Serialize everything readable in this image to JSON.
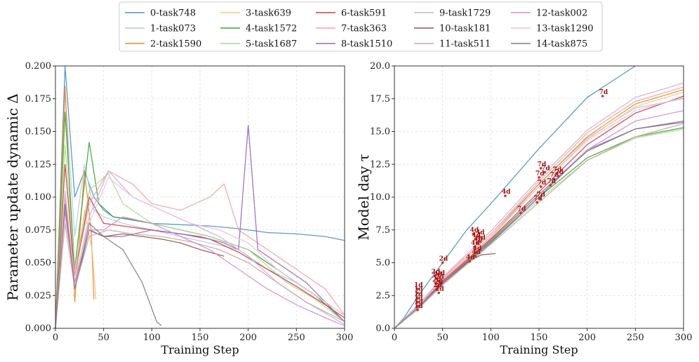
{
  "legend": {
    "entries": [
      {
        "label": "0-task748",
        "color": "#4a90c4"
      },
      {
        "label": "1-task073",
        "color": "#aecde8"
      },
      {
        "label": "2-task1590",
        "color": "#f08a2b"
      },
      {
        "label": "3-task639",
        "color": "#f7c58b"
      },
      {
        "label": "4-task1572",
        "color": "#3fa33a"
      },
      {
        "label": "5-task1687",
        "color": "#a9dd93"
      },
      {
        "label": "6-task591",
        "color": "#d43a3a"
      },
      {
        "label": "7-task363",
        "color": "#f5a3a3"
      },
      {
        "label": "8-task1510",
        "color": "#9467bd"
      },
      {
        "label": "9-task1729",
        "color": "#c8b3dc"
      },
      {
        "label": "10-task181",
        "color": "#8c564b"
      },
      {
        "label": "11-task511",
        "color": "#c9a99f"
      },
      {
        "label": "12-task002",
        "color": "#d98ad4"
      },
      {
        "label": "13-task1290",
        "color": "#f2bfdc"
      },
      {
        "label": "14-task875",
        "color": "#7f7f7f"
      }
    ]
  },
  "chart_data": [
    {
      "type": "line",
      "title": "",
      "xlabel": "Training Step",
      "ylabel": "Parameter update dynamic Δ",
      "xlim": [
        0,
        300
      ],
      "ylim": [
        0,
        0.2
      ],
      "xticks": [
        "0",
        "50",
        "100",
        "150",
        "200",
        "250",
        "300"
      ],
      "yticks": [
        "0.000",
        "0.025",
        "0.050",
        "0.075",
        "0.100",
        "0.125",
        "0.150",
        "0.175",
        "0.200"
      ],
      "grid": true,
      "series": [
        {
          "name": "0-task748",
          "x": [
            0,
            10,
            20,
            30,
            40,
            50,
            60,
            80,
            100,
            130,
            160,
            190,
            220,
            250,
            280,
            300
          ],
          "y": [
            0,
            0.2,
            0.1,
            0.12,
            0.1,
            0.09,
            0.085,
            0.083,
            0.08,
            0.079,
            0.078,
            0.076,
            0.073,
            0.072,
            0.07,
            0.067
          ]
        },
        {
          "name": "1-task073",
          "x": [
            0,
            10,
            20,
            30,
            40,
            50,
            70,
            100,
            130,
            160,
            190,
            220,
            250,
            280,
            300
          ],
          "y": [
            0,
            0.18,
            0.07,
            0.125,
            0.09,
            0.085,
            0.08,
            0.075,
            0.07,
            0.065,
            0.06,
            0.045,
            0.035,
            0.02,
            0.01
          ]
        },
        {
          "name": "2-task1590",
          "x": [
            0,
            10,
            20,
            30,
            37,
            40
          ],
          "y": [
            0,
            0.185,
            0.02,
            0.12,
            0.075,
            0.022
          ]
        },
        {
          "name": "3-task639",
          "x": [
            0,
            10,
            20,
            30,
            38,
            42
          ],
          "y": [
            0,
            0.1,
            0.03,
            0.09,
            0.06,
            0.022
          ]
        },
        {
          "name": "4-task1572",
          "x": [
            0,
            10,
            20,
            35,
            45,
            60,
            100,
            130,
            160,
            200,
            240,
            270,
            300
          ],
          "y": [
            0,
            0.165,
            0.045,
            0.142,
            0.095,
            0.085,
            0.08,
            0.075,
            0.07,
            0.06,
            0.04,
            0.025,
            0.005
          ]
        },
        {
          "name": "5-task1687",
          "x": [
            0,
            10,
            20,
            35,
            55,
            70,
            100,
            130,
            160,
            200,
            240,
            270,
            300
          ],
          "y": [
            0,
            0.14,
            0.045,
            0.105,
            0.118,
            0.095,
            0.08,
            0.075,
            0.07,
            0.06,
            0.035,
            0.022,
            0.005
          ]
        },
        {
          "name": "6-task591",
          "x": [
            0,
            10,
            20,
            35,
            50,
            70,
            100,
            130,
            160,
            190,
            220,
            250,
            280,
            300
          ],
          "y": [
            0,
            0.125,
            0.04,
            0.1,
            0.08,
            0.078,
            0.075,
            0.072,
            0.068,
            0.058,
            0.045,
            0.032,
            0.018,
            0.008
          ]
        },
        {
          "name": "7-task363",
          "x": [
            0,
            10,
            20,
            35,
            55,
            80,
            100,
            130,
            160,
            175,
            190,
            220,
            250,
            280,
            300
          ],
          "y": [
            0,
            0.1,
            0.04,
            0.095,
            0.12,
            0.11,
            0.095,
            0.09,
            0.1,
            0.11,
            0.075,
            0.06,
            0.045,
            0.03,
            0.01
          ]
        },
        {
          "name": "8-task1510",
          "x": [
            0,
            10,
            20,
            35,
            50,
            70,
            100,
            130,
            150,
            175,
            190,
            200,
            210,
            230,
            260,
            300
          ],
          "y": [
            0,
            0.095,
            0.03,
            0.075,
            0.07,
            0.07,
            0.075,
            0.072,
            0.07,
            0.065,
            0.06,
            0.155,
            0.06,
            0.05,
            0.035,
            0.005
          ]
        },
        {
          "name": "9-task1729",
          "x": [
            0,
            10,
            20,
            35,
            55,
            80,
            110,
            140,
            170,
            200,
            230,
            260,
            300
          ],
          "y": [
            0,
            0.105,
            0.035,
            0.085,
            0.12,
            0.1,
            0.09,
            0.08,
            0.07,
            0.055,
            0.035,
            0.02,
            0.003
          ]
        },
        {
          "name": "10-task181",
          "x": [
            0,
            10,
            20,
            35,
            50,
            70,
            90,
            110,
            130,
            150,
            175
          ],
          "y": [
            0,
            0.09,
            0.03,
            0.075,
            0.07,
            0.072,
            0.07,
            0.068,
            0.065,
            0.06,
            0.055
          ]
        },
        {
          "name": "11-task511",
          "x": [
            0,
            10,
            20,
            35,
            55,
            80,
            110,
            140,
            170,
            200,
            230,
            260,
            300
          ],
          "y": [
            0,
            0.08,
            0.03,
            0.07,
            0.075,
            0.072,
            0.07,
            0.066,
            0.06,
            0.05,
            0.035,
            0.02,
            0.005
          ]
        },
        {
          "name": "12-task002",
          "x": [
            0,
            10,
            20,
            35,
            50,
            70,
            100,
            130,
            160,
            190,
            220,
            250,
            280,
            300
          ],
          "y": [
            0,
            0.09,
            0.035,
            0.075,
            0.075,
            0.085,
            0.08,
            0.07,
            0.06,
            0.045,
            0.03,
            0.018,
            0.008,
            0.002
          ]
        },
        {
          "name": "13-task1290",
          "x": [
            0,
            10,
            20,
            35,
            55,
            80,
            110,
            140,
            170,
            200,
            230,
            260,
            300
          ],
          "y": [
            0,
            0.085,
            0.03,
            0.08,
            0.115,
            0.1,
            0.09,
            0.08,
            0.075,
            0.065,
            0.045,
            0.03,
            0.01
          ]
        },
        {
          "name": "14-task875",
          "x": [
            0,
            10,
            20,
            35,
            50,
            70,
            90,
            105,
            110
          ],
          "y": [
            0,
            0.095,
            0.03,
            0.08,
            0.07,
            0.06,
            0.035,
            0.005,
            0.002
          ]
        }
      ]
    },
    {
      "type": "line",
      "title": "",
      "xlabel": "Training Step",
      "ylabel": "Model day τ",
      "xlim": [
        0,
        300
      ],
      "ylim": [
        0,
        20
      ],
      "xticks": [
        "0",
        "50",
        "100",
        "150",
        "200",
        "250",
        "300"
      ],
      "yticks": [
        "0.0",
        "2.5",
        "5.0",
        "7.5",
        "10.0",
        "12.5",
        "15.0",
        "17.5",
        "20.0"
      ],
      "grid": true,
      "series": [
        {
          "name": "0-task748",
          "x": [
            0,
            10,
            25,
            50,
            75,
            100,
            150,
            200,
            250
          ],
          "y": [
            0,
            0.8,
            2.5,
            5.0,
            7.5,
            9.5,
            13.7,
            17.6,
            20.0
          ]
        },
        {
          "name": "1-task073",
          "x": [
            0,
            25,
            50,
            100,
            150,
            200,
            250,
            300
          ],
          "y": [
            0,
            1.8,
            3.8,
            7.2,
            11.0,
            14.5,
            16.8,
            17.5
          ]
        },
        {
          "name": "2-task1590",
          "x": [
            0,
            25,
            50,
            100,
            150,
            200,
            250,
            300
          ],
          "y": [
            0,
            1.7,
            3.7,
            7.0,
            11.0,
            14.6,
            17.1,
            18.2
          ]
        },
        {
          "name": "3-task639",
          "x": [
            0,
            25,
            50,
            100,
            150,
            200,
            250,
            300
          ],
          "y": [
            0,
            1.7,
            3.6,
            6.9,
            10.8,
            14.4,
            16.9,
            18.0
          ]
        },
        {
          "name": "4-task1572",
          "x": [
            0,
            25,
            50,
            100,
            150,
            200,
            250,
            300
          ],
          "y": [
            0,
            1.6,
            3.5,
            6.6,
            10.0,
            13.0,
            14.6,
            15.3
          ]
        },
        {
          "name": "5-task1687",
          "x": [
            0,
            25,
            50,
            100,
            150,
            200,
            250,
            300
          ],
          "y": [
            0,
            1.6,
            3.4,
            6.5,
            9.8,
            12.8,
            14.5,
            15.2
          ]
        },
        {
          "name": "6-task591",
          "x": [
            0,
            25,
            50,
            100,
            150,
            200,
            250,
            300
          ],
          "y": [
            0,
            1.7,
            3.6,
            6.8,
            10.4,
            14.0,
            16.4,
            17.7
          ]
        },
        {
          "name": "7-task363",
          "x": [
            0,
            25,
            50,
            100,
            150,
            200,
            250,
            300
          ],
          "y": [
            0,
            1.8,
            3.8,
            7.2,
            11.2,
            14.9,
            17.3,
            18.4
          ]
        },
        {
          "name": "8-task1510",
          "x": [
            0,
            25,
            50,
            100,
            150,
            200,
            250,
            300
          ],
          "y": [
            0,
            1.6,
            3.4,
            6.5,
            10.0,
            13.6,
            15.2,
            15.7
          ]
        },
        {
          "name": "9-task1729",
          "x": [
            0,
            25,
            50,
            100,
            150,
            200,
            250,
            300
          ],
          "y": [
            0,
            1.8,
            3.9,
            7.4,
            11.4,
            15.1,
            17.6,
            18.7
          ]
        },
        {
          "name": "10-task181",
          "x": [
            0,
            25,
            50,
            75,
            90,
            105
          ],
          "y": [
            0,
            1.7,
            3.5,
            5.0,
            5.6,
            5.7
          ]
        },
        {
          "name": "11-task511",
          "x": [
            0,
            25,
            50,
            100,
            150,
            200,
            250,
            300
          ],
          "y": [
            0,
            1.5,
            3.3,
            6.4,
            9.6,
            12.8,
            14.6,
            15.6
          ]
        },
        {
          "name": "12-task002",
          "x": [
            0,
            25,
            50,
            100,
            150,
            200,
            250,
            300
          ],
          "y": [
            0,
            1.6,
            3.5,
            6.7,
            10.2,
            13.6,
            15.8,
            16.6
          ]
        },
        {
          "name": "13-task1290",
          "x": [
            0,
            25,
            50,
            100,
            150,
            200,
            250,
            300
          ],
          "y": [
            0,
            1.7,
            3.7,
            7.0,
            10.8,
            14.3,
            16.6,
            17.6
          ]
        },
        {
          "name": "14-task875",
          "x": [
            0,
            25,
            50,
            100,
            150,
            200,
            250,
            300
          ],
          "y": [
            0,
            1.6,
            3.5,
            6.7,
            10.2,
            13.5,
            15.2,
            15.8
          ]
        }
      ],
      "annotations": [
        {
          "label": "1d",
          "x": 24,
          "y": 3.0
        },
        {
          "label": "1d",
          "x": 24,
          "y": 2.7
        },
        {
          "label": "1d",
          "x": 24,
          "y": 2.3
        },
        {
          "label": "1d",
          "x": 24,
          "y": 2.0
        },
        {
          "label": "1d",
          "x": 24,
          "y": 1.7
        },
        {
          "label": "1d",
          "x": 24,
          "y": 1.4
        },
        {
          "label": "2d",
          "x": 50,
          "y": 5.0
        },
        {
          "label": "2d",
          "x": 42,
          "y": 4.0
        },
        {
          "label": "2d",
          "x": 44,
          "y": 3.8
        },
        {
          "label": "2d",
          "x": 46,
          "y": 3.6
        },
        {
          "label": "2d",
          "x": 43,
          "y": 3.4
        },
        {
          "label": "2d",
          "x": 45,
          "y": 3.2
        },
        {
          "label": "2d",
          "x": 47,
          "y": 3.9
        },
        {
          "label": "2d",
          "x": 44,
          "y": 3.0
        },
        {
          "label": "2d",
          "x": 46,
          "y": 2.7
        },
        {
          "label": "4d",
          "x": 78,
          "y": 5.1
        },
        {
          "label": "4d",
          "x": 115,
          "y": 10.1
        },
        {
          "label": "4d",
          "x": 82,
          "y": 7.2
        },
        {
          "label": "4d",
          "x": 88,
          "y": 7.0
        },
        {
          "label": "4d",
          "x": 84,
          "y": 6.8
        },
        {
          "label": "4d",
          "x": 86,
          "y": 6.5
        },
        {
          "label": "4d",
          "x": 83,
          "y": 6.2
        },
        {
          "label": "4d",
          "x": 89,
          "y": 6.6
        },
        {
          "label": "4d",
          "x": 85,
          "y": 5.8
        },
        {
          "label": "4d",
          "x": 84,
          "y": 5.5
        },
        {
          "label": "7d",
          "x": 216,
          "y": 17.7
        },
        {
          "label": "7d",
          "x": 131,
          "y": 8.8
        },
        {
          "label": "7d",
          "x": 152,
          "y": 12.2
        },
        {
          "label": "7d",
          "x": 156,
          "y": 11.9
        },
        {
          "label": "7d",
          "x": 150,
          "y": 11.5
        },
        {
          "label": "7d",
          "x": 165,
          "y": 11.4
        },
        {
          "label": "7d",
          "x": 168,
          "y": 11.8
        },
        {
          "label": "7d",
          "x": 170,
          "y": 11.6
        },
        {
          "label": "7d",
          "x": 152,
          "y": 10.8
        },
        {
          "label": "7d",
          "x": 162,
          "y": 10.9
        },
        {
          "label": "7d",
          "x": 148,
          "y": 9.6
        },
        {
          "label": "7d",
          "x": 151,
          "y": 9.9
        }
      ]
    }
  ]
}
